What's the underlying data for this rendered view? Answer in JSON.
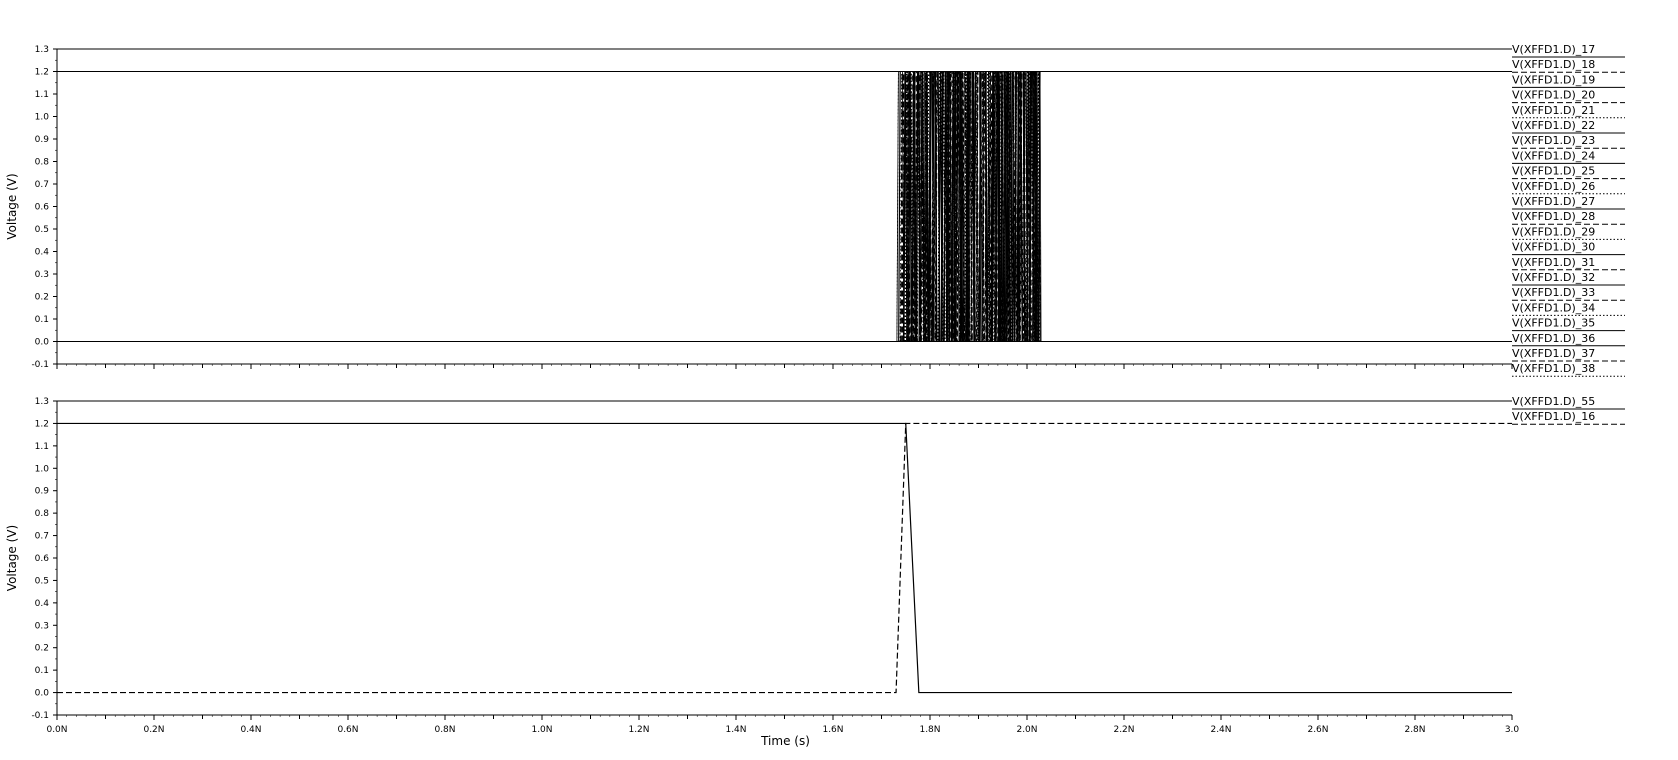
{
  "chart_data": [
    {
      "type": "line",
      "ylabel": "Voltage (V)",
      "ylim": [
        -0.1,
        1.3
      ],
      "xlim": [
        0,
        3.0
      ],
      "y_ticks": [
        "1.3",
        "1.2",
        "1.1",
        "1.0",
        "0.9",
        "0.8",
        "0.7",
        "0.6",
        "0.5",
        "0.4",
        "0.3",
        "0.2",
        "0.1",
        "0.0",
        "-0.1"
      ],
      "legend_placement": "right",
      "pulse_train": {
        "start_ns": 1.74,
        "end_ns": 2.02,
        "low_v": 0.0,
        "high_v": 1.2
      },
      "series": [
        {
          "name": "V(XFFD1.D)_17",
          "style": "solid"
        },
        {
          "name": "V(XFFD1.D)_18",
          "style": "dashed"
        },
        {
          "name": "V(XFFD1.D)_19",
          "style": "solid"
        },
        {
          "name": "V(XFFD1.D)_20",
          "style": "dashed"
        },
        {
          "name": "V(XFFD1.D)_21",
          "style": "dotted"
        },
        {
          "name": "V(XFFD1.D)_22",
          "style": "solid"
        },
        {
          "name": "V(XFFD1.D)_23",
          "style": "dashed"
        },
        {
          "name": "V(XFFD1.D)_24",
          "style": "solid"
        },
        {
          "name": "V(XFFD1.D)_25",
          "style": "dashed"
        },
        {
          "name": "V(XFFD1.D)_26",
          "style": "dotted"
        },
        {
          "name": "V(XFFD1.D)_27",
          "style": "solid"
        },
        {
          "name": "V(XFFD1.D)_28",
          "style": "dashed"
        },
        {
          "name": "V(XFFD1.D)_29",
          "style": "dotted"
        },
        {
          "name": "V(XFFD1.D)_30",
          "style": "solid"
        },
        {
          "name": "V(XFFD1.D)_31",
          "style": "dashed"
        },
        {
          "name": "V(XFFD1.D)_32",
          "style": "solid"
        },
        {
          "name": "V(XFFD1.D)_33",
          "style": "dashed"
        },
        {
          "name": "V(XFFD1.D)_34",
          "style": "dotted"
        },
        {
          "name": "V(XFFD1.D)_35",
          "style": "solid"
        },
        {
          "name": "V(XFFD1.D)_36",
          "style": "solid"
        },
        {
          "name": "V(XFFD1.D)_37",
          "style": "dashed"
        },
        {
          "name": "V(XFFD1.D)_38",
          "style": "dotted"
        }
      ]
    },
    {
      "type": "line",
      "xlabel": "Time (s)",
      "ylabel": "Voltage (V)",
      "ylim": [
        -0.1,
        1.3
      ],
      "xlim": [
        0,
        3.0
      ],
      "y_ticks": [
        "1.3",
        "1.2",
        "1.1",
        "1.0",
        "0.9",
        "0.8",
        "0.7",
        "0.6",
        "0.5",
        "0.4",
        "0.3",
        "0.2",
        "0.1",
        "0.0",
        "-0.1"
      ],
      "x_ticks": [
        {
          "v": 0.0,
          "label": "0.0N"
        },
        {
          "v": 0.2,
          "label": "0.2N"
        },
        {
          "v": 0.4,
          "label": "0.4N"
        },
        {
          "v": 0.6,
          "label": "0.6N"
        },
        {
          "v": 0.8,
          "label": "0.8N"
        },
        {
          "v": 1.0,
          "label": "1.0N"
        },
        {
          "v": 1.2,
          "label": "1.2N"
        },
        {
          "v": 1.4,
          "label": "1.4N"
        },
        {
          "v": 1.6,
          "label": "1.6N"
        },
        {
          "v": 1.8,
          "label": "1.8N"
        },
        {
          "v": 2.0,
          "label": "2.0N"
        },
        {
          "v": 2.2,
          "label": "2.2N"
        },
        {
          "v": 2.4,
          "label": "2.4N"
        },
        {
          "v": 2.6,
          "label": "2.6N"
        },
        {
          "v": 2.8,
          "label": "2.8N"
        },
        {
          "v": 3.0,
          "label": "3.0"
        }
      ],
      "legend_placement": "right",
      "series": [
        {
          "name": "V(XFFD1.D)_55",
          "style": "solid",
          "x": [
            0,
            1.75,
            1.777,
            3.0
          ],
          "y": [
            1.2,
            1.2,
            0.0,
            0.0
          ]
        },
        {
          "name": "V(XFFD1.D)_16",
          "style": "dashed",
          "x": [
            0,
            1.73,
            1.75,
            3.0
          ],
          "y": [
            0.0,
            0.0,
            1.2,
            1.2
          ]
        }
      ]
    }
  ]
}
